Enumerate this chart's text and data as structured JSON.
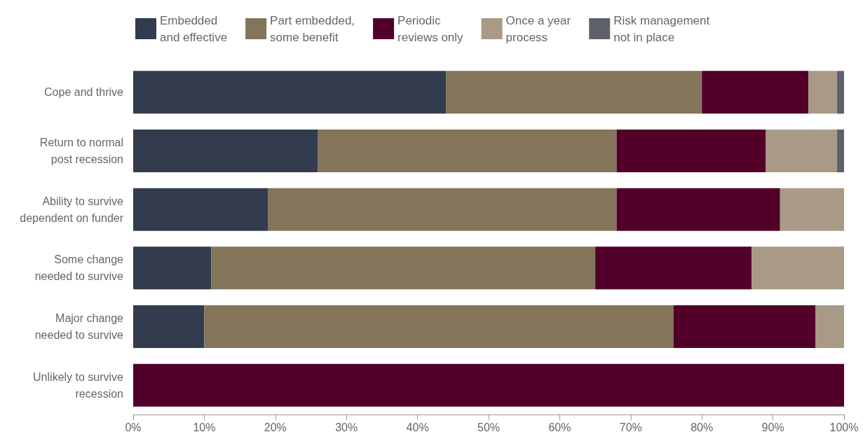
{
  "chart_data": {
    "type": "bar",
    "orientation": "horizontal",
    "stacked": true,
    "legend": "top left",
    "grid": false,
    "categories": [
      "Cope and thrive",
      "Return to normal\npost recession",
      "Ability to survive\ndependent on funder",
      "Some change\nneeded to survive",
      "Major change\nneeded to survive",
      "Unlikely to survive\nrecession"
    ],
    "series": [
      {
        "name": "Embedded\nand effective",
        "color": "#323c4e",
        "values": [
          44,
          26,
          19,
          11,
          10,
          0
        ]
      },
      {
        "name": "Part embedded,\nsome benefit",
        "color": "#83745a",
        "values": [
          36,
          42,
          49,
          54,
          66,
          0
        ]
      },
      {
        "name": "Periodic\nreviews only",
        "color": "#52002a",
        "values": [
          15,
          21,
          23,
          22,
          20,
          100
        ]
      },
      {
        "name": "Once a year\nprocess",
        "color": "#a89a87",
        "values": [
          4,
          10,
          9,
          13,
          4,
          0
        ]
      },
      {
        "name": "Risk management\nnot in place",
        "color": "#5e606b",
        "values": [
          1,
          1,
          0,
          0,
          0,
          0
        ]
      }
    ],
    "xlim": [
      0,
      100
    ],
    "xticks": [
      {
        "value": 0,
        "label": "0%"
      },
      {
        "value": 10,
        "label": "10%"
      },
      {
        "value": 20,
        "label": "20%"
      },
      {
        "value": 30,
        "label": "30%"
      },
      {
        "value": 40,
        "label": "40%"
      },
      {
        "value": 50,
        "label": "50%"
      },
      {
        "value": 60,
        "label": "60%"
      },
      {
        "value": 70,
        "label": "70%"
      },
      {
        "value": 80,
        "label": "80%"
      },
      {
        "value": 90,
        "label": "90%"
      },
      {
        "value": 100,
        "label": "100%"
      }
    ]
  }
}
